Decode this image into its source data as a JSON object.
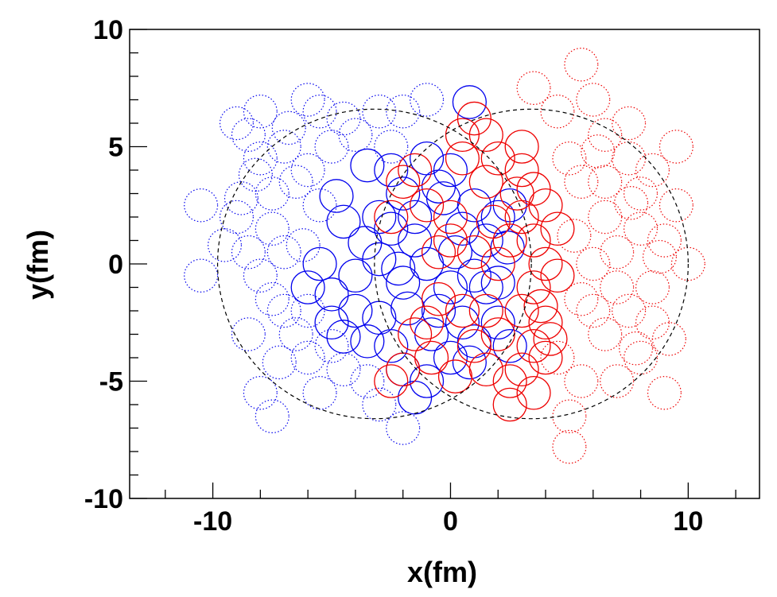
{
  "chart_data": {
    "type": "scatter",
    "xlabel": "x(fm)",
    "ylabel": "y(fm)",
    "xlim": [
      -13.5,
      13
    ],
    "ylim": [
      -10,
      10
    ],
    "x_ticks": [
      -10,
      0,
      10
    ],
    "y_ticks": [
      10,
      5,
      0,
      -5,
      -10
    ],
    "x_tick_labels": [
      "-10",
      "0",
      "10"
    ],
    "y_tick_labels": [
      "10",
      "5",
      "0",
      "-5",
      "-10"
    ],
    "grid": false,
    "nucleon_radius": 0.7,
    "colors": {
      "blue": "#0000ee",
      "red": "#ee0000",
      "outline": "#000000"
    },
    "nuclei": [
      {
        "name": "left",
        "center": [
          -3.2,
          0
        ],
        "radius": 6.6
      },
      {
        "name": "right",
        "center": [
          3.4,
          0
        ],
        "radius": 6.6
      }
    ],
    "series": [
      {
        "color": "blue",
        "style": "solid",
        "points": [
          [
            0.8,
            6.9
          ],
          [
            -0.5,
            3.3
          ],
          [
            -1.5,
            1.0
          ],
          [
            -2.0,
            -0.8
          ],
          [
            -3.0,
            2.0
          ],
          [
            -4.0,
            -0.5
          ],
          [
            -4.5,
            1.8
          ],
          [
            -3.5,
            4.2
          ],
          [
            -2.5,
            4.0
          ],
          [
            -1.0,
            4.5
          ],
          [
            0.0,
            4.0
          ],
          [
            -2.0,
            3.0
          ],
          [
            -3.0,
            -2.3
          ],
          [
            -4.0,
            -2.0
          ],
          [
            -5.0,
            -1.3
          ],
          [
            -5.5,
            0.0
          ],
          [
            -4.5,
            -3.1
          ],
          [
            -2.5,
            -3.5
          ],
          [
            -2.0,
            -4.5
          ],
          [
            -1.0,
            -5.0
          ],
          [
            -1.5,
            -5.7
          ],
          [
            0.0,
            -4.0
          ],
          [
            0.5,
            -2.5
          ],
          [
            0.0,
            -1.0
          ],
          [
            -1.0,
            0.0
          ],
          [
            0.5,
            1.5
          ],
          [
            1.0,
            2.5
          ],
          [
            1.5,
            1.0
          ],
          [
            2.0,
            2.0
          ],
          [
            2.5,
            2.5
          ],
          [
            1.5,
            -1.0
          ],
          [
            2.0,
            -2.5
          ],
          [
            2.5,
            -3.5
          ],
          [
            -0.5,
            -2.0
          ],
          [
            -3.0,
            0.2
          ],
          [
            -2.5,
            1.5
          ],
          [
            -5.0,
            -2.5
          ],
          [
            -3.5,
            -3.3
          ],
          [
            -6.0,
            -1.0
          ],
          [
            -1.5,
            2.0
          ],
          [
            1.0,
            -0.5
          ],
          [
            0.2,
            0.5
          ],
          [
            -0.8,
            -3.0
          ],
          [
            1.0,
            -3.3
          ],
          [
            -4.8,
            2.9
          ],
          [
            -3.6,
            0.9
          ],
          [
            -2.2,
            -0.2
          ],
          [
            -1.8,
            -1.9
          ],
          [
            0.8,
            -4.2
          ],
          [
            2.4,
            0.7
          ],
          [
            2.0,
            -0.8
          ],
          [
            -0.3,
            2.8
          ]
        ]
      },
      {
        "color": "blue",
        "style": "dotted",
        "points": [
          [
            -10.5,
            2.5
          ],
          [
            -10.5,
            -0.5
          ],
          [
            -9.0,
            2.0
          ],
          [
            -8.5,
            0.5
          ],
          [
            -8.0,
            4.5
          ],
          [
            -7.5,
            3.0
          ],
          [
            -7.0,
            0.5
          ],
          [
            -7.5,
            -1.5
          ],
          [
            -8.5,
            -3.0
          ],
          [
            -8.0,
            -5.5
          ],
          [
            -7.5,
            -6.5
          ],
          [
            -6.0,
            -4.0
          ],
          [
            -5.5,
            -5.5
          ],
          [
            -5.0,
            -3.5
          ],
          [
            -4.5,
            -4.5
          ],
          [
            -3.5,
            -5.0
          ],
          [
            -3.0,
            -6.0
          ],
          [
            -2.0,
            -7.0
          ],
          [
            -2.0,
            6.5
          ],
          [
            -3.0,
            6.5
          ],
          [
            -4.0,
            5.5
          ],
          [
            -5.0,
            5.0
          ],
          [
            -6.0,
            4.0
          ],
          [
            -5.5,
            6.5
          ],
          [
            -6.0,
            7.0
          ],
          [
            -7.0,
            5.0
          ],
          [
            -8.5,
            5.5
          ],
          [
            -9.0,
            6.0
          ],
          [
            -8.0,
            6.5
          ],
          [
            -1.0,
            7.0
          ],
          [
            -2.5,
            5.0
          ],
          [
            -5.5,
            2.5
          ],
          [
            -6.5,
            -3.0
          ],
          [
            -7.0,
            -2.0
          ],
          [
            -6.5,
            3.5
          ],
          [
            -6.0,
            -2.0
          ],
          [
            -7.5,
            1.5
          ],
          [
            -8.0,
            -0.5
          ],
          [
            -9.5,
            0.8
          ],
          [
            -8.8,
            2.8
          ],
          [
            -7.2,
            -4.2
          ],
          [
            -6.8,
            5.8
          ],
          [
            -4.5,
            6.2
          ],
          [
            -6.2,
            0.8
          ],
          [
            -8.2,
            3.8
          ]
        ]
      },
      {
        "color": "red",
        "style": "solid",
        "points": [
          [
            1.0,
            6.2
          ],
          [
            1.5,
            5.5
          ],
          [
            2.0,
            4.5
          ],
          [
            3.0,
            4.0
          ],
          [
            3.5,
            3.2
          ],
          [
            4.0,
            2.5
          ],
          [
            3.0,
            2.0
          ],
          [
            2.5,
            1.0
          ],
          [
            3.5,
            1.0
          ],
          [
            4.0,
            0.0
          ],
          [
            4.5,
            -0.5
          ],
          [
            3.5,
            -1.0
          ],
          [
            3.0,
            -2.0
          ],
          [
            4.0,
            -2.5
          ],
          [
            3.5,
            -3.5
          ],
          [
            3.0,
            -4.5
          ],
          [
            3.5,
            -5.5
          ],
          [
            2.5,
            -5.0
          ],
          [
            1.5,
            -4.5
          ],
          [
            1.0,
            -3.5
          ],
          [
            0.5,
            -2.0
          ],
          [
            -0.5,
            -1.5
          ],
          [
            -1.5,
            -3.0
          ],
          [
            -2.0,
            -4.5
          ],
          [
            -2.5,
            -5.0
          ],
          [
            -1.0,
            -2.5
          ],
          [
            0.0,
            2.0
          ],
          [
            -1.0,
            2.5
          ],
          [
            -2.0,
            3.5
          ],
          [
            -2.5,
            2.0
          ],
          [
            0.5,
            4.5
          ],
          [
            1.5,
            3.5
          ],
          [
            2.0,
            0.0
          ],
          [
            1.0,
            0.5
          ],
          [
            0.0,
            1.0
          ],
          [
            4.5,
            1.5
          ],
          [
            4.0,
            -4.0
          ],
          [
            2.0,
            -3.0
          ],
          [
            -0.5,
            0.5
          ],
          [
            2.5,
            -6.0
          ],
          [
            1.5,
            -2.0
          ],
          [
            0.5,
            5.5
          ],
          [
            -1.5,
            4.0
          ],
          [
            3.0,
            5.0
          ],
          [
            3.8,
            -1.8
          ],
          [
            2.8,
            3.0
          ],
          [
            0.2,
            -4.8
          ],
          [
            -0.8,
            -4.0
          ],
          [
            1.8,
            1.8
          ],
          [
            4.2,
            -3.2
          ]
        ]
      },
      {
        "color": "red",
        "style": "dotted",
        "points": [
          [
            5.5,
            8.5
          ],
          [
            6.0,
            7.0
          ],
          [
            3.5,
            7.5
          ],
          [
            4.5,
            6.5
          ],
          [
            6.5,
            5.5
          ],
          [
            7.5,
            4.5
          ],
          [
            8.0,
            3.0
          ],
          [
            9.5,
            2.5
          ],
          [
            9.0,
            1.0
          ],
          [
            10.0,
            0.0
          ],
          [
            8.5,
            -1.0
          ],
          [
            7.5,
            -2.0
          ],
          [
            6.5,
            -3.0
          ],
          [
            8.0,
            -4.0
          ],
          [
            9.0,
            -5.5
          ],
          [
            7.0,
            -5.0
          ],
          [
            5.5,
            -5.0
          ],
          [
            5.0,
            -6.5
          ],
          [
            5.0,
            -7.8
          ],
          [
            4.5,
            -4.0
          ],
          [
            6.0,
            -2.0
          ],
          [
            7.0,
            0.5
          ],
          [
            6.5,
            2.0
          ],
          [
            5.5,
            3.5
          ],
          [
            8.5,
            4.0
          ],
          [
            9.5,
            5.0
          ],
          [
            7.5,
            6.0
          ],
          [
            5.0,
            4.5
          ],
          [
            6.0,
            0.0
          ],
          [
            8.0,
            1.5
          ],
          [
            7.0,
            -1.0
          ],
          [
            8.5,
            -2.5
          ],
          [
            6.5,
            3.5
          ],
          [
            5.5,
            -1.5
          ],
          [
            9.2,
            -3.2
          ],
          [
            7.8,
            -3.6
          ],
          [
            6.2,
            4.8
          ],
          [
            8.8,
            0.3
          ],
          [
            5.2,
            1.2
          ],
          [
            7.6,
            2.6
          ]
        ]
      }
    ]
  }
}
